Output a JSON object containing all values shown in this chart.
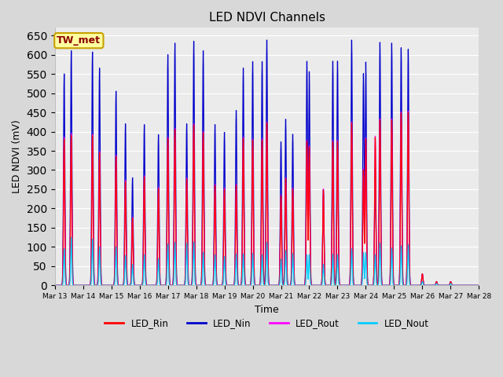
{
  "title": "LED NDVI Channels",
  "xlabel": "Time",
  "ylabel": "LED NDVI (mV)",
  "ylim": [
    0,
    670
  ],
  "yticks": [
    0,
    50,
    100,
    150,
    200,
    250,
    300,
    350,
    400,
    450,
    500,
    550,
    600,
    650
  ],
  "background_color": "#d8d8d8",
  "plot_bg_color": "#ebebeb",
  "legend_labels": [
    "LED_Rin",
    "LED_Nin",
    "LED_Rout",
    "LED_Nout"
  ],
  "legend_colors": [
    "#ff0000",
    "#0000cc",
    "#ff00ff",
    "#00ccff"
  ],
  "annotation_text": "TW_met",
  "annotation_color": "#8b0000",
  "annotation_bg": "#ffffa0",
  "annotation_border": "#c8a000",
  "day_labels": [
    "Mar 13",
    "Mar 14",
    "Mar 15",
    "Mar 16",
    "Mar 17",
    "Mar 18",
    "Mar 19",
    "Mar 20",
    "Mar 21",
    "Mar 22",
    "Mar 23",
    "Mar 24",
    "Mar 25",
    "Mar 26",
    "Mar 27",
    "Mar 28"
  ],
  "grid_color": "#ffffff",
  "line_width": 0.9,
  "peak_data": [
    [
      8,
      550,
      380,
      385,
      95
    ],
    [
      14,
      610,
      390,
      395,
      125
    ],
    [
      32,
      607,
      390,
      393,
      120
    ],
    [
      38,
      565,
      345,
      348,
      100
    ],
    [
      52,
      505,
      335,
      338,
      100
    ],
    [
      60,
      420,
      270,
      273,
      78
    ],
    [
      66,
      280,
      175,
      177,
      55
    ],
    [
      76,
      418,
      282,
      285,
      80
    ],
    [
      88,
      392,
      252,
      255,
      70
    ],
    [
      96,
      600,
      382,
      385,
      108
    ],
    [
      102,
      630,
      405,
      408,
      112
    ],
    [
      112,
      420,
      276,
      279,
      110
    ],
    [
      118,
      635,
      417,
      420,
      113
    ],
    [
      126,
      610,
      397,
      400,
      86
    ],
    [
      136,
      418,
      260,
      263,
      80
    ],
    [
      144,
      398,
      250,
      253,
      75
    ],
    [
      154,
      455,
      260,
      263,
      82
    ],
    [
      160,
      565,
      382,
      385,
      82
    ],
    [
      168,
      582,
      377,
      380,
      83
    ],
    [
      176,
      582,
      378,
      381,
      79
    ],
    [
      180,
      638,
      422,
      425,
      112
    ],
    [
      192,
      373,
      232,
      235,
      68
    ],
    [
      196,
      432,
      277,
      280,
      91
    ],
    [
      202,
      393,
      250,
      253,
      83
    ],
    [
      214,
      582,
      374,
      377,
      80
    ],
    [
      216,
      555,
      360,
      363,
      80
    ],
    [
      228,
      250,
      248,
      251,
      55
    ],
    [
      236,
      583,
      373,
      376,
      81
    ],
    [
      240,
      583,
      374,
      377,
      80
    ],
    [
      252,
      638,
      422,
      425,
      95
    ],
    [
      262,
      550,
      300,
      303,
      85
    ],
    [
      264,
      580,
      380,
      383,
      85
    ],
    [
      272,
      305,
      385,
      388,
      80
    ],
    [
      276,
      632,
      430,
      433,
      110
    ],
    [
      286,
      630,
      430,
      433,
      97
    ],
    [
      294,
      618,
      448,
      451,
      103
    ],
    [
      300,
      614,
      450,
      453,
      106
    ],
    [
      312,
      30,
      30,
      30,
      10
    ],
    [
      324,
      10,
      10,
      10,
      5
    ],
    [
      336,
      10,
      10,
      10,
      5
    ]
  ]
}
